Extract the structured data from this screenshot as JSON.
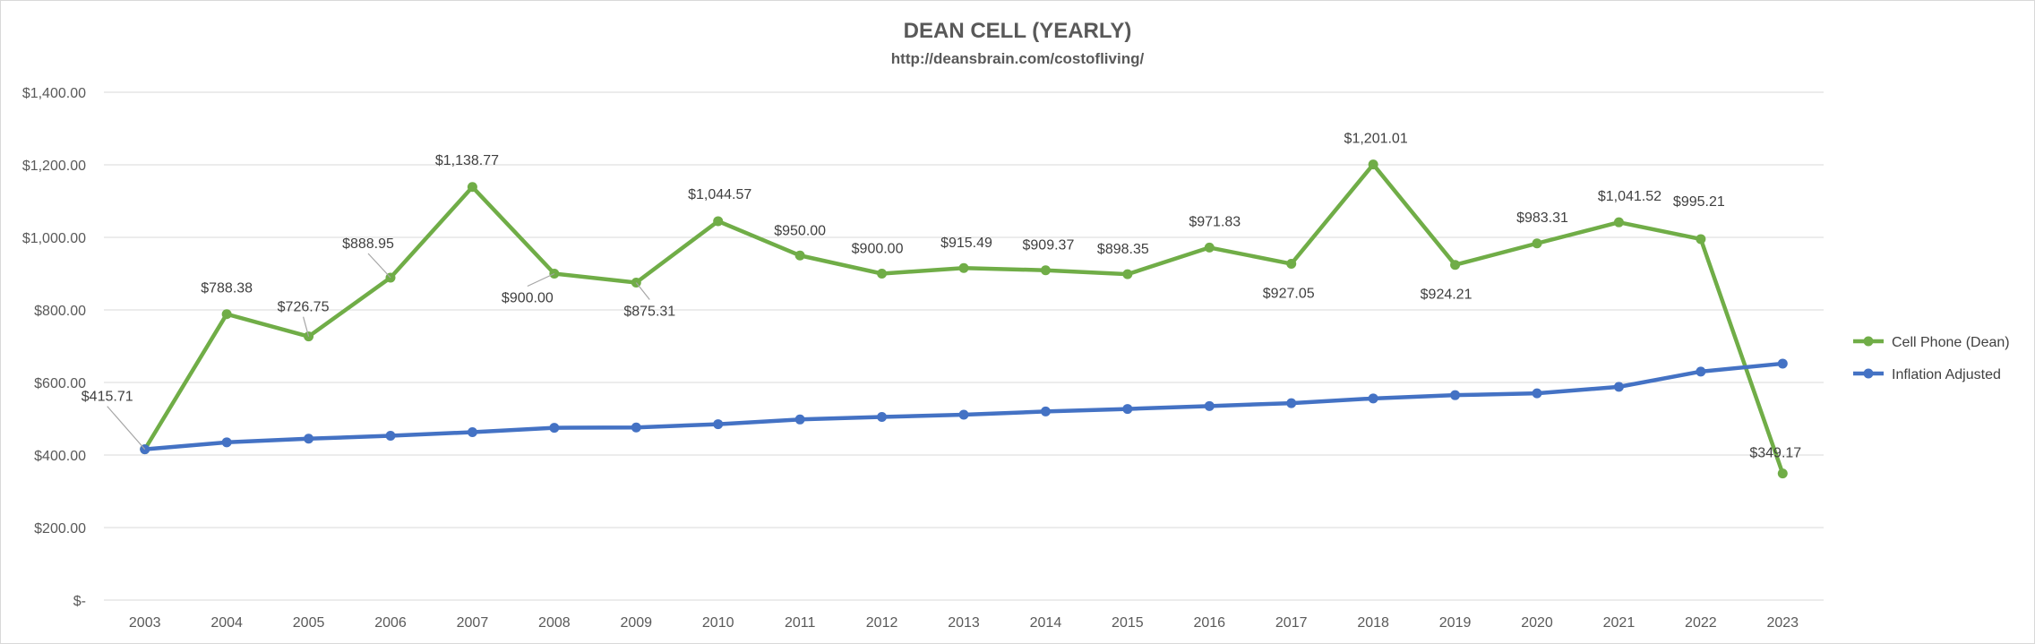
{
  "chart_data": {
    "type": "line",
    "title": "DEAN CELL (YEARLY)",
    "subtitle": "http://deansbrain.com/costofliving/",
    "x": [
      "2003",
      "2004",
      "2005",
      "2006",
      "2007",
      "2008",
      "2009",
      "2010",
      "2011",
      "2012",
      "2013",
      "2014",
      "2015",
      "2016",
      "2017",
      "2018",
      "2019",
      "2020",
      "2021",
      "2022",
      "2023"
    ],
    "ylim": [
      0,
      1400
    ],
    "yticks": [
      0,
      200,
      400,
      600,
      800,
      1000,
      1200,
      1400
    ],
    "ytick_labels": [
      "$-",
      "$200.00",
      "$400.00",
      "$600.00",
      "$800.00",
      "$1,000.00",
      "$1,200.00",
      "$1,400.00"
    ],
    "grid": true,
    "legend_position": "right",
    "series": [
      {
        "name": "Cell Phone (Dean)",
        "color": "#70ad47",
        "values": [
          415.71,
          788.38,
          726.75,
          888.95,
          1138.77,
          900.0,
          875.31,
          1044.57,
          950.0,
          900.0,
          915.49,
          909.37,
          898.35,
          971.83,
          927.05,
          1201.01,
          924.21,
          983.31,
          1041.52,
          995.21,
          349.17
        ],
        "labels": [
          "$415.71",
          "$788.38",
          "$726.75",
          "$888.95",
          "$1,138.77",
          "$900.00",
          "$875.31",
          "$1,044.57",
          "$950.00",
          "$900.00",
          "$915.49",
          "$909.37",
          "$898.35",
          "$971.83",
          "$927.05",
          "$1,201.01",
          "$924.21",
          "$983.31",
          "$1,041.52",
          "$995.21",
          "$349.17"
        ]
      },
      {
        "name": "Inflation Adjusted",
        "color": "#4472c4",
        "values": [
          415.71,
          435,
          445,
          453,
          463,
          475,
          476,
          485,
          498,
          505,
          511,
          520,
          527,
          535,
          543,
          556,
          565,
          570,
          588,
          630,
          652
        ]
      }
    ]
  }
}
